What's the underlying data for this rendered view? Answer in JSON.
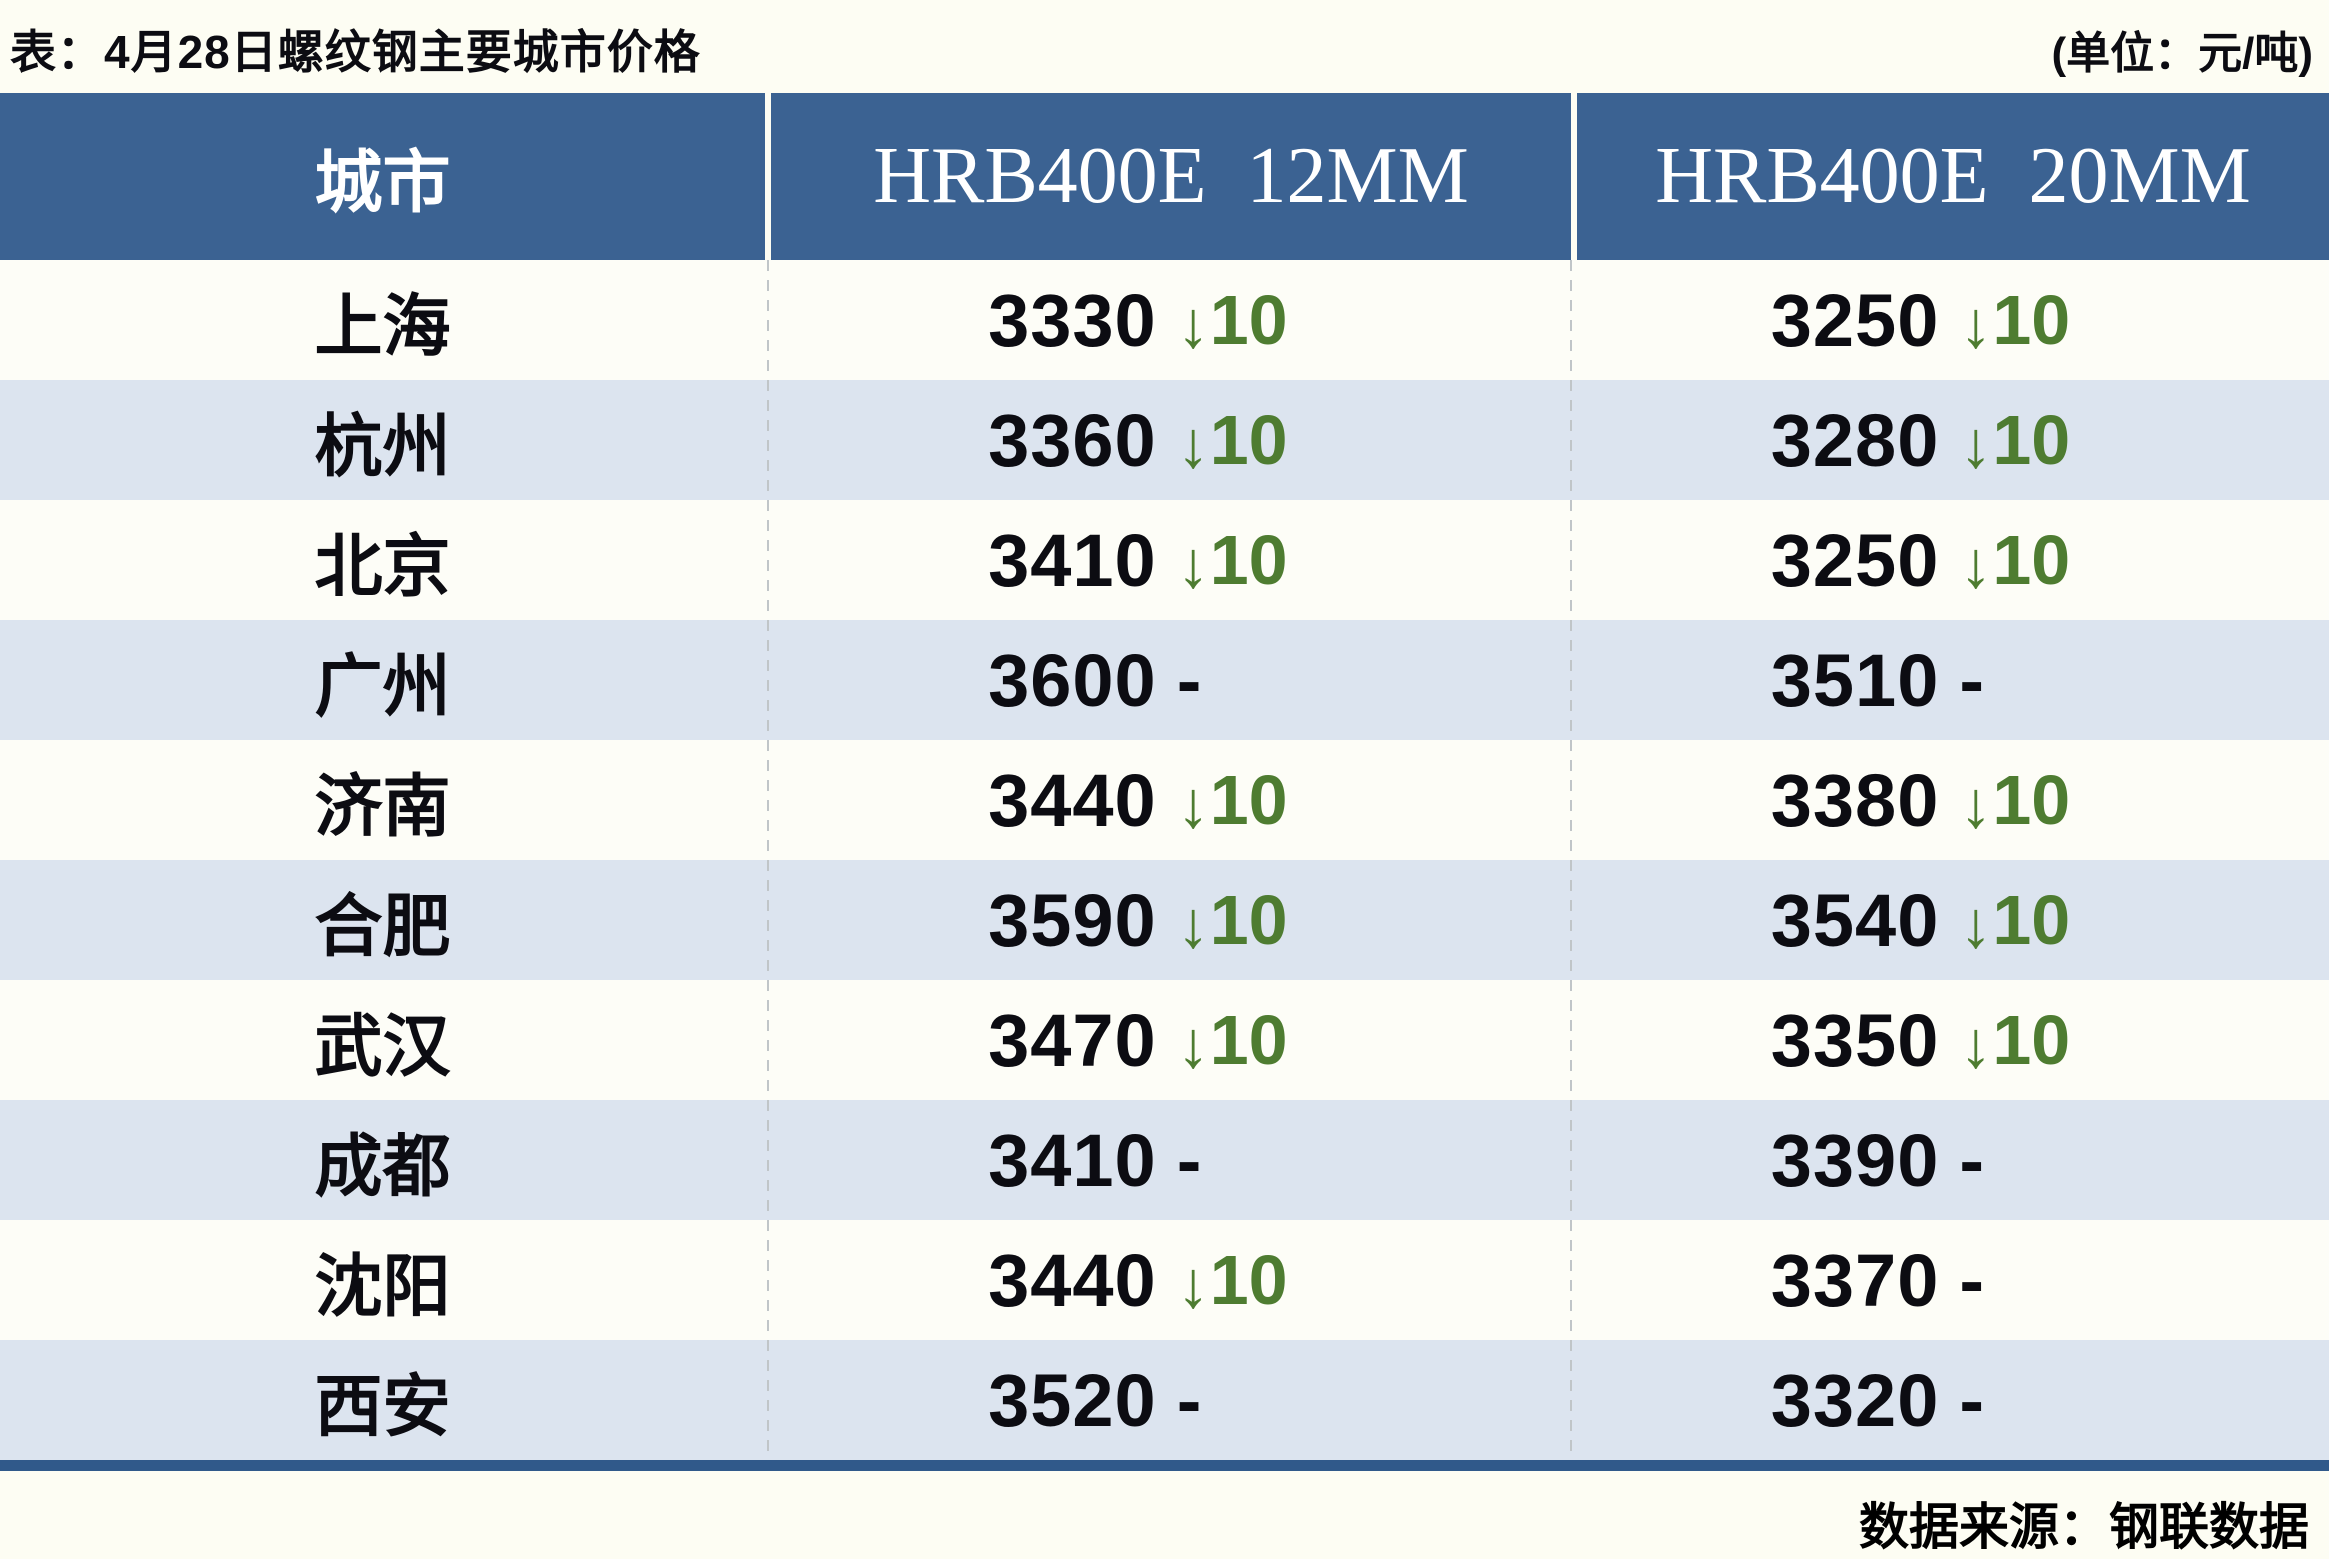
{
  "page": {
    "title": "表：4月28日螺纹钢主要城市价格",
    "unit_note": "(单位：元/吨)",
    "source_note": "数据来源：钢联数据"
  },
  "icons": {
    "down_arrow": "↓"
  },
  "colors": {
    "page_bg": "#fdfdf3",
    "header_bg": "#3b6292",
    "header_text": "#ffffff",
    "row_light": "#fdfdf7",
    "row_alt": "#dce4ef",
    "text_dark": "#0c0c12",
    "down_green": "#4e7c31",
    "divider": "#c0c5c8",
    "bottom_bar": "#30598a"
  },
  "table": {
    "columns": [
      "城市",
      "HRB400E  12MM",
      "HRB400E  20MM"
    ],
    "no_change_symbol": "-",
    "rows": [
      {
        "city": "上海",
        "p12": {
          "value": "3330",
          "dir": "down",
          "change": "10"
        },
        "p20": {
          "value": "3250",
          "dir": "down",
          "change": "10"
        }
      },
      {
        "city": "杭州",
        "p12": {
          "value": "3360",
          "dir": "down",
          "change": "10"
        },
        "p20": {
          "value": "3280",
          "dir": "down",
          "change": "10"
        }
      },
      {
        "city": "北京",
        "p12": {
          "value": "3410",
          "dir": "down",
          "change": "10"
        },
        "p20": {
          "value": "3250",
          "dir": "down",
          "change": "10"
        }
      },
      {
        "city": "广州",
        "p12": {
          "value": "3600",
          "dir": "none",
          "change": ""
        },
        "p20": {
          "value": "3510",
          "dir": "none",
          "change": ""
        }
      },
      {
        "city": "济南",
        "p12": {
          "value": "3440",
          "dir": "down",
          "change": "10"
        },
        "p20": {
          "value": "3380",
          "dir": "down",
          "change": "10"
        }
      },
      {
        "city": "合肥",
        "p12": {
          "value": "3590",
          "dir": "down",
          "change": "10"
        },
        "p20": {
          "value": "3540",
          "dir": "down",
          "change": "10"
        }
      },
      {
        "city": "武汉",
        "p12": {
          "value": "3470",
          "dir": "down",
          "change": "10"
        },
        "p20": {
          "value": "3350",
          "dir": "down",
          "change": "10"
        }
      },
      {
        "city": "成都",
        "p12": {
          "value": "3410",
          "dir": "none",
          "change": ""
        },
        "p20": {
          "value": "3390",
          "dir": "none",
          "change": ""
        }
      },
      {
        "city": "沈阳",
        "p12": {
          "value": "3440",
          "dir": "down",
          "change": "10"
        },
        "p20": {
          "value": "3370",
          "dir": "none",
          "change": ""
        }
      },
      {
        "city": "西安",
        "p12": {
          "value": "3520",
          "dir": "none",
          "change": ""
        },
        "p20": {
          "value": "3320",
          "dir": "none",
          "change": ""
        }
      }
    ]
  },
  "chart_data": {
    "type": "table",
    "title": "表：4月28日螺纹钢主要城市价格",
    "unit": "元/吨",
    "columns": [
      "城市",
      "HRB400E 12MM",
      "HRB400E 20MM"
    ],
    "rows": [
      {
        "city": "上海",
        "hrb400e_12mm": 3330,
        "change_12mm": -10,
        "hrb400e_20mm": 3250,
        "change_20mm": -10
      },
      {
        "city": "杭州",
        "hrb400e_12mm": 3360,
        "change_12mm": -10,
        "hrb400e_20mm": 3280,
        "change_20mm": -10
      },
      {
        "city": "北京",
        "hrb400e_12mm": 3410,
        "change_12mm": -10,
        "hrb400e_20mm": 3250,
        "change_20mm": -10
      },
      {
        "city": "广州",
        "hrb400e_12mm": 3600,
        "change_12mm": 0,
        "hrb400e_20mm": 3510,
        "change_20mm": 0
      },
      {
        "city": "济南",
        "hrb400e_12mm": 3440,
        "change_12mm": -10,
        "hrb400e_20mm": 3380,
        "change_20mm": -10
      },
      {
        "city": "合肥",
        "hrb400e_12mm": 3590,
        "change_12mm": -10,
        "hrb400e_20mm": 3540,
        "change_20mm": -10
      },
      {
        "city": "武汉",
        "hrb400e_12mm": 3470,
        "change_12mm": -10,
        "hrb400e_20mm": 3350,
        "change_20mm": -10
      },
      {
        "city": "成都",
        "hrb400e_12mm": 3410,
        "change_12mm": 0,
        "hrb400e_20mm": 3390,
        "change_20mm": 0
      },
      {
        "city": "沈阳",
        "hrb400e_12mm": 3440,
        "change_12mm": -10,
        "hrb400e_20mm": 3370,
        "change_20mm": 0
      },
      {
        "city": "西安",
        "hrb400e_12mm": 3520,
        "change_12mm": 0,
        "hrb400e_20mm": 3320,
        "change_20mm": 0
      }
    ],
    "source": "钢联数据"
  }
}
